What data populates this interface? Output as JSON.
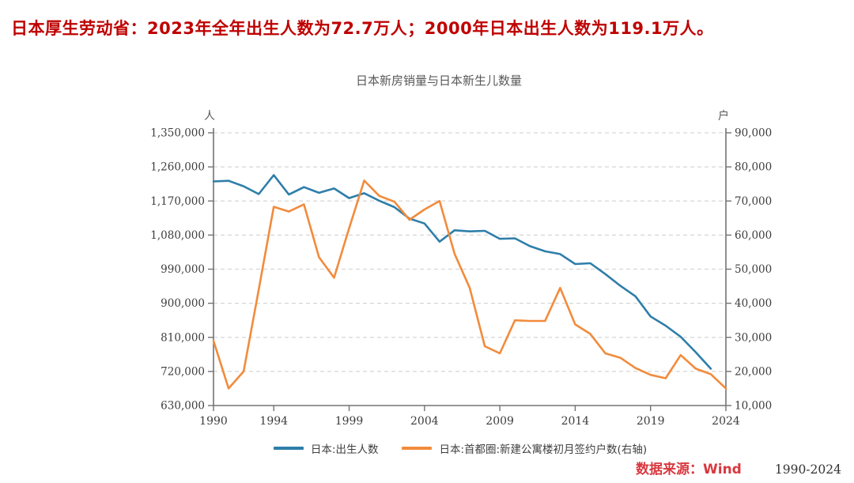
{
  "header": {
    "headline": "日本厚生劳动省：2023年全年出生人数为72.7万人；2000年日本出生人数为119.1万人。"
  },
  "chart_data": {
    "type": "line",
    "title": "日本新房销量与日本新生儿数量",
    "grid": "horizontal-dashed",
    "legend_position": "bottom",
    "left_axis": {
      "unit": "人",
      "min": 630000,
      "max": 1350000,
      "tick_step": 90000,
      "tick_labels": [
        "1,350,000",
        "1,260,000",
        "1,170,000",
        "1,080,000",
        "990,000",
        "900,000",
        "810,000",
        "720,000",
        "630,000"
      ]
    },
    "right_axis": {
      "unit": "户",
      "min": 10000,
      "max": 90000,
      "tick_step": 10000,
      "tick_labels": [
        "90,000",
        "80,000",
        "70,000",
        "60,000",
        "50,000",
        "40,000",
        "30,000",
        "20,000",
        "10,000"
      ]
    },
    "x_axis": {
      "min": 1990,
      "max": 2024,
      "ticks": [
        1990,
        1994,
        1999,
        2004,
        2009,
        2014,
        2019,
        2024
      ],
      "tick_labels": [
        "1990",
        "1994",
        "1999",
        "2004",
        "2009",
        "2014",
        "2019",
        "2024"
      ]
    },
    "series": [
      {
        "name": "日本:出生人数",
        "axis": "left",
        "color": "#2e7ea9",
        "years": [
          1990,
          1991,
          1992,
          1993,
          1994,
          1995,
          1996,
          1997,
          1998,
          1999,
          2000,
          2001,
          2002,
          2003,
          2004,
          2005,
          2006,
          2007,
          2008,
          2009,
          2010,
          2011,
          2012,
          2013,
          2014,
          2015,
          2016,
          2017,
          2018,
          2019,
          2020,
          2021,
          2022,
          2023
        ],
        "values": [
          1221585,
          1223245,
          1208989,
          1188282,
          1238328,
          1187064,
          1206555,
          1191665,
          1203147,
          1177669,
          1190547,
          1170662,
          1153855,
          1123610,
          1110721,
          1062530,
          1092674,
          1089818,
          1091156,
          1070035,
          1071304,
          1050806,
          1037231,
          1029816,
          1003539,
          1005677,
          976978,
          946065,
          918400,
          865239,
          840835,
          811622,
          770747,
          727277
        ]
      },
      {
        "name": "日本:首都圈:新建公寓楼初月签约户数(右轴)",
        "axis": "right",
        "color": "#f28b3c",
        "years": [
          1990,
          1991,
          1992,
          1993,
          1994,
          1995,
          1996,
          1997,
          1998,
          1999,
          2000,
          2001,
          2002,
          2003,
          2004,
          2005,
          2006,
          2007,
          2008,
          2009,
          2010,
          2011,
          2012,
          2013,
          2014,
          2015,
          2016,
          2017,
          2018,
          2019,
          2020,
          2021,
          2022,
          2023,
          2024
        ],
        "values": [
          29000,
          15000,
          20000,
          44000,
          68300,
          66900,
          69000,
          53500,
          47500,
          62000,
          76000,
          71500,
          69800,
          64500,
          67500,
          70000,
          54500,
          44500,
          27400,
          25300,
          35000,
          34800,
          34800,
          44500,
          33800,
          31000,
          25300,
          24000,
          21000,
          19000,
          18000,
          24800,
          20800,
          19200,
          15000
        ]
      }
    ]
  },
  "footer": {
    "source_label": "数据来源：Wind",
    "range_label": "1990-2024"
  },
  "colors": {
    "headline": "#bf0000",
    "source": "#d8383f",
    "title": "#595959",
    "tick_text": "#3d3d3d",
    "grid": "#d6d6d6",
    "axis": "#737373",
    "birth_line": "#2e7ea9",
    "contract_line": "#f28b3c"
  }
}
